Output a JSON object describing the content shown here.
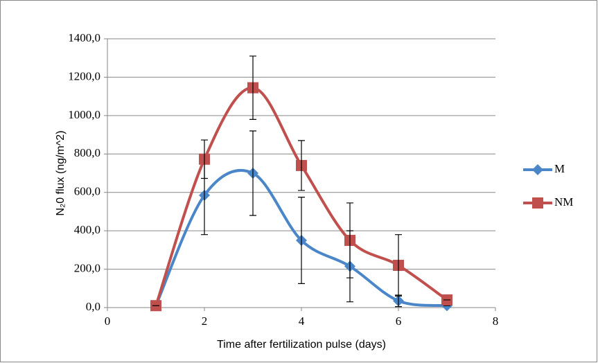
{
  "chart_data": {
    "type": "line",
    "x_label": "Time after fertilization pulse (days)",
    "y_label": "N₂0 flux (ng/m^2)",
    "x": [
      1,
      2,
      3,
      4,
      5,
      6,
      7
    ],
    "series": [
      {
        "name": "M",
        "color": "#4a86c8",
        "marker": "diamond",
        "values": [
          10,
          585,
          700,
          350,
          215,
          35,
          10
        ],
        "errors": [
          0,
          205,
          220,
          225,
          185,
          30,
          0
        ]
      },
      {
        "name": "NM",
        "color": "#c0504d",
        "marker": "square",
        "values": [
          10,
          773,
          1145,
          740,
          350,
          220,
          40
        ],
        "errors": [
          0,
          100,
          165,
          130,
          195,
          160,
          0
        ]
      }
    ],
    "xlim": [
      0,
      8
    ],
    "xticks": [
      0,
      2,
      4,
      6,
      8
    ],
    "ylim": [
      0,
      1400
    ],
    "yticks": [
      {
        "value": 0,
        "label": "0,0"
      },
      {
        "value": 200,
        "label": "200,0"
      },
      {
        "value": 400,
        "label": "400,0"
      },
      {
        "value": 600,
        "label": "600,0"
      },
      {
        "value": 800,
        "label": "800,0"
      },
      {
        "value": 1000,
        "label": "1000,0"
      },
      {
        "value": 1200,
        "label": "1200,0"
      },
      {
        "value": 1400,
        "label": "1400,0"
      }
    ],
    "grid": true,
    "legend": "right",
    "smooth": true
  }
}
